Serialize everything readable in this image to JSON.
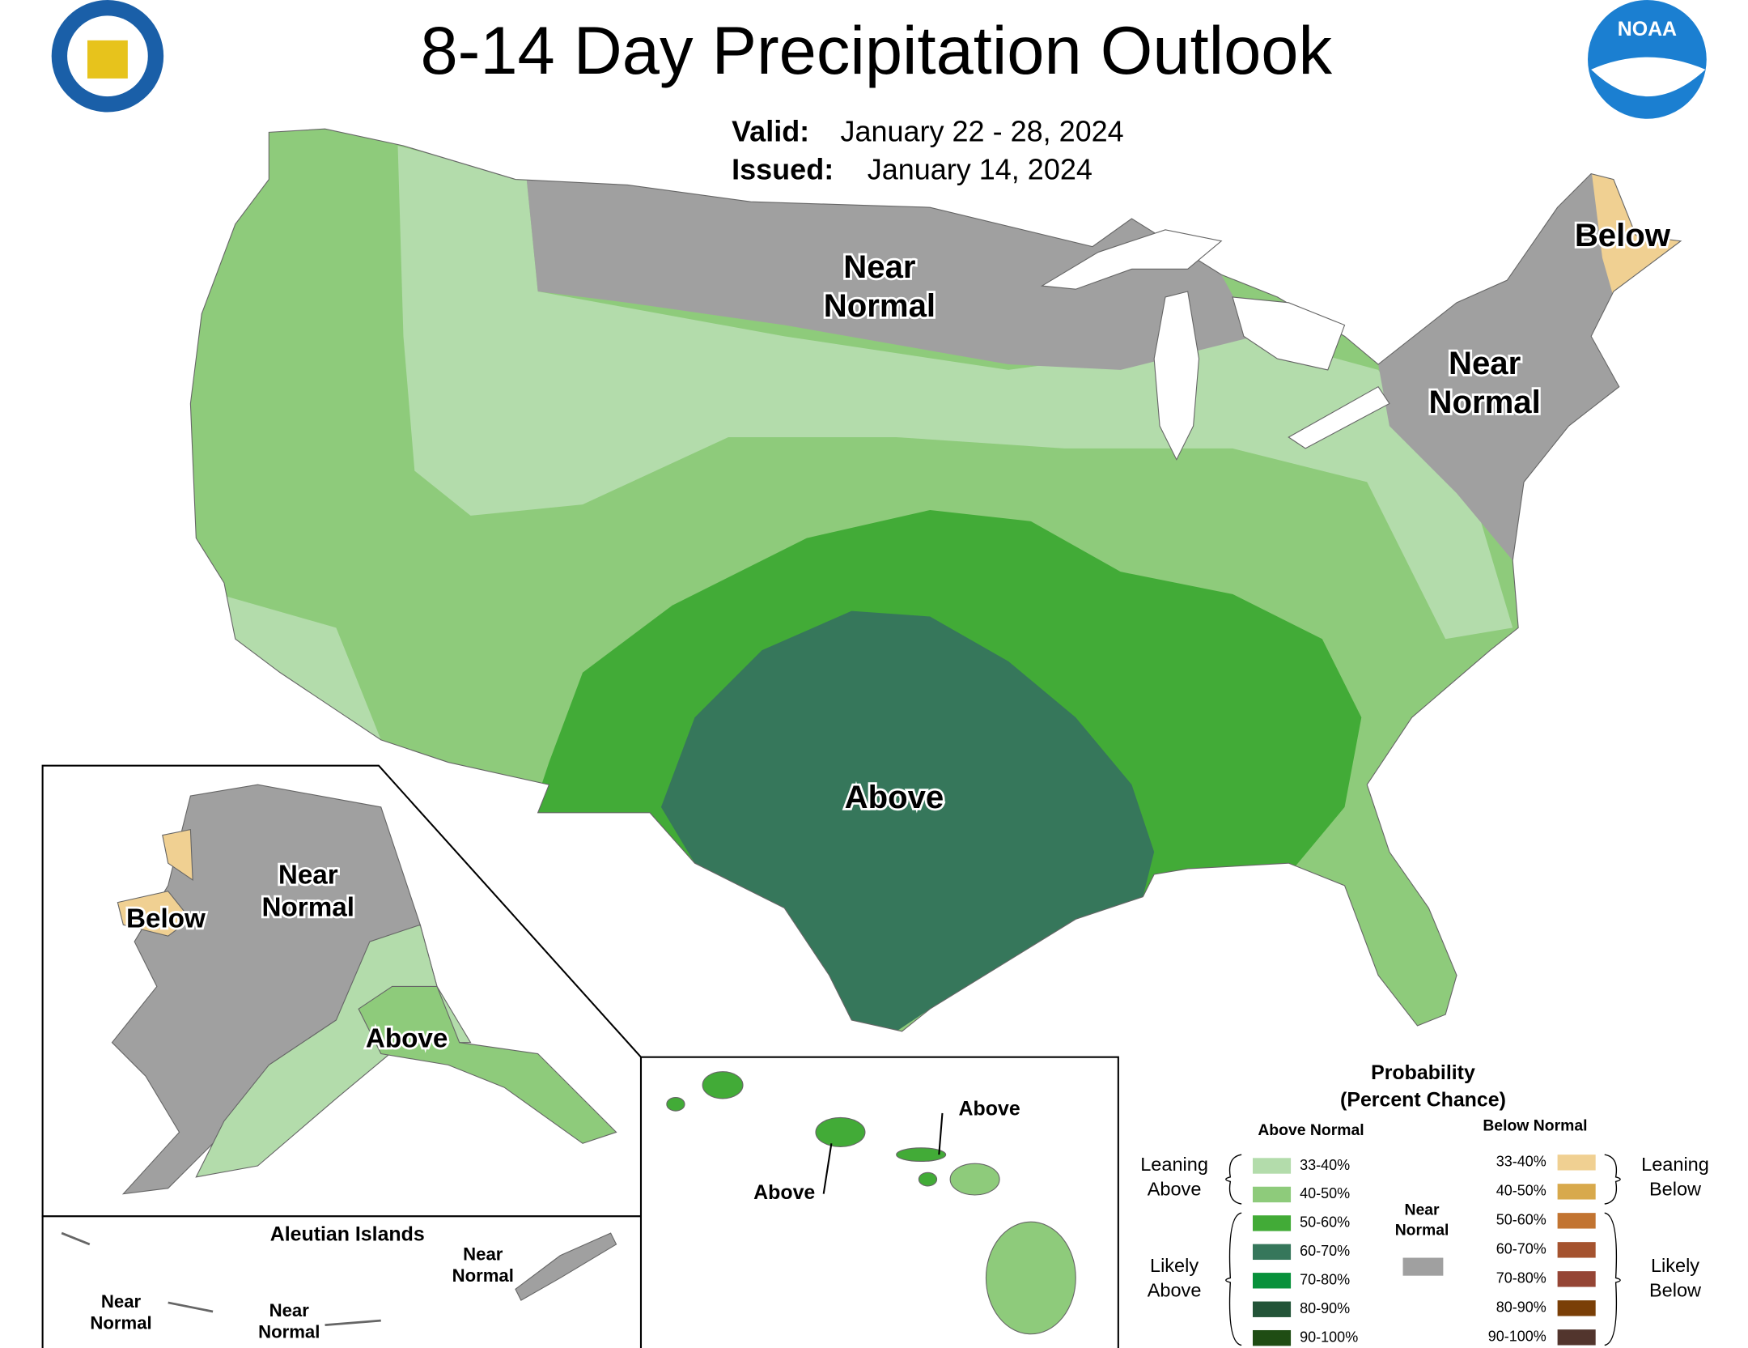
{
  "header": {
    "title": "8-14 Day Precipitation Outlook",
    "valid": {
      "label": "Valid:",
      "text": "January 22 - 28, 2024"
    },
    "issued": {
      "label": "Issued:",
      "text": "January 14, 2024"
    },
    "logo_text": "NOAA"
  },
  "map_labels": [
    {
      "lines": [
        "Near",
        "Normal"
      ]
    },
    {
      "lines": [
        "Below"
      ]
    },
    {
      "lines": [
        "Near",
        "Normal"
      ]
    },
    {
      "lines": [
        "Above"
      ]
    },
    {
      "lines": [
        "Near",
        "Normal"
      ]
    },
    {
      "lines": [
        "Below"
      ]
    },
    {
      "lines": [
        "Above"
      ]
    },
    {
      "lines": [
        "Above"
      ]
    },
    {
      "lines": [
        "Above"
      ]
    },
    {
      "lines": [
        "Near",
        "Normal"
      ]
    },
    {
      "lines": [
        "Near",
        "Normal"
      ]
    },
    {
      "lines": [
        "Near",
        "Normal"
      ]
    }
  ],
  "aleutian_title": "Aleutian Islands",
  "legend": {
    "title": [
      "Probability",
      "(Percent Chance)"
    ],
    "above": {
      "heading": "Above Normal",
      "items": [
        {
          "label": "33-40%",
          "color": "#b3dcab"
        },
        {
          "label": "40-50%",
          "color": "#8ecb7b"
        },
        {
          "label": "50-60%",
          "color": "#42ab37"
        },
        {
          "label": "60-70%",
          "color": "#36775b"
        },
        {
          "label": "70-80%",
          "color": "#08913b"
        },
        {
          "label": "80-90%",
          "color": "#235438"
        },
        {
          "label": "90-100%",
          "color": "#1f4d14"
        }
      ]
    },
    "below": {
      "heading": "Below Normal",
      "items": [
        {
          "label": "33-40%",
          "color": "#f0d092"
        },
        {
          "label": "40-50%",
          "color": "#d8a94c"
        },
        {
          "label": "50-60%",
          "color": "#c27431"
        },
        {
          "label": "60-70%",
          "color": "#a5532f"
        },
        {
          "label": "70-80%",
          "color": "#954535"
        },
        {
          "label": "80-90%",
          "color": "#7a3f07"
        },
        {
          "label": "90-100%",
          "color": "#52352d"
        }
      ]
    },
    "near": {
      "lines": [
        "Near",
        "Normal"
      ],
      "color": "#a0a0a0"
    },
    "groups": [
      {
        "lines": [
          "Leaning",
          "Above"
        ]
      },
      {
        "lines": [
          "Likely",
          "Above"
        ]
      },
      {
        "lines": [
          "Leaning",
          "Below"
        ]
      },
      {
        "lines": [
          "Likely",
          "Below"
        ]
      }
    ]
  }
}
